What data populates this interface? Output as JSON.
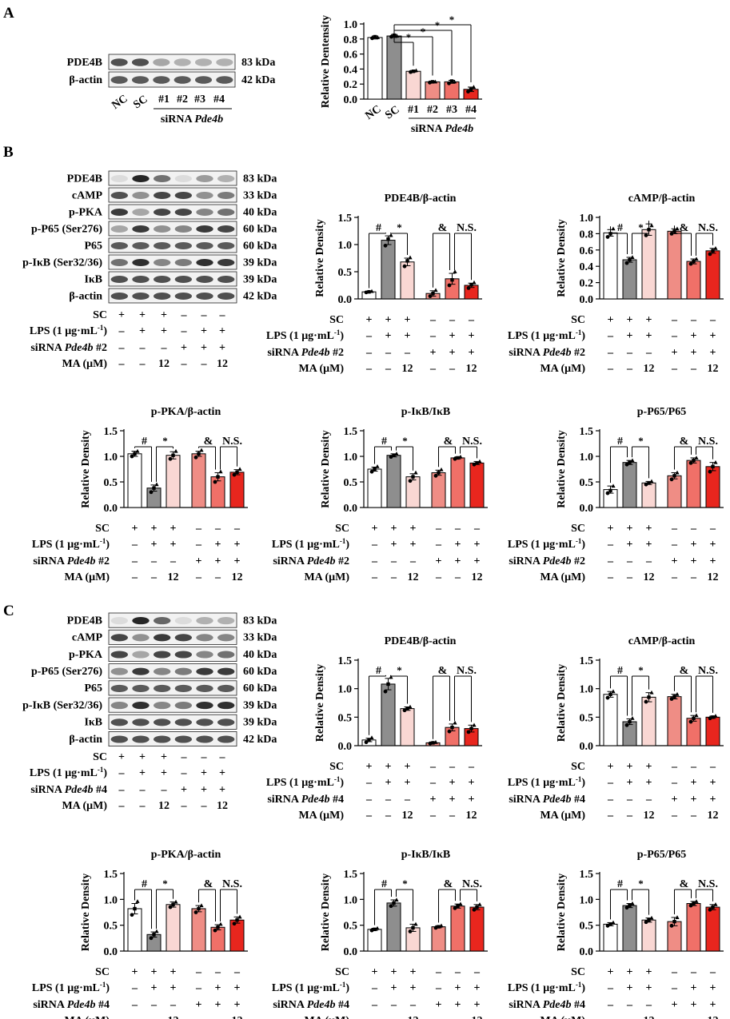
{
  "colors": {
    "nc": "#ffffff",
    "sc": "#8e8e8e",
    "si1": "#f9d7d3",
    "si2": "#ef8d85",
    "si3": "#f07068",
    "si4": "#e8261e",
    "band": "#1a1a1a",
    "membrane": "#f2f2f2"
  },
  "panel_labels": {
    "a": "A",
    "b": "B",
    "c": "C"
  },
  "blot_a": {
    "proteins": [
      "PDE4B",
      "β-actin"
    ],
    "sizes": [
      "83 kDa",
      "42 kDa"
    ],
    "lanes": [
      "NC",
      "SC",
      "#1",
      "#2",
      "#3",
      "#4"
    ],
    "group_label": "siRNA",
    "group_gene": "Pde4b",
    "intensities": [
      [
        0.75,
        0.75,
        0.35,
        0.3,
        0.3,
        0.3
      ],
      [
        0.7,
        0.7,
        0.7,
        0.7,
        0.7,
        0.7
      ]
    ]
  },
  "blot_b": {
    "proteins": [
      "PDE4B",
      "cAMP",
      "p-PKA",
      "p-P65 (Ser276)",
      "P65",
      "p-IκB (Ser32/36)",
      "IκB",
      "β-actin"
    ],
    "sizes": [
      "83 kDa",
      "33 kDa",
      "40 kDa",
      "60 kDa",
      "60 kDa",
      "39 kDa",
      "39 kDa",
      "42 kDa"
    ],
    "intensities": [
      [
        0.1,
        0.95,
        0.6,
        0.1,
        0.4,
        0.3
      ],
      [
        0.75,
        0.45,
        0.8,
        0.8,
        0.45,
        0.55
      ],
      [
        0.85,
        0.35,
        0.8,
        0.8,
        0.5,
        0.6
      ],
      [
        0.35,
        0.85,
        0.45,
        0.5,
        0.85,
        0.8
      ],
      [
        0.7,
        0.7,
        0.7,
        0.7,
        0.7,
        0.7
      ],
      [
        0.6,
        0.9,
        0.5,
        0.55,
        0.9,
        0.85
      ],
      [
        0.75,
        0.75,
        0.75,
        0.75,
        0.75,
        0.75
      ],
      [
        0.75,
        0.75,
        0.75,
        0.75,
        0.75,
        0.75
      ]
    ]
  },
  "blot_c": {
    "proteins": [
      "PDE4B",
      "cAMP",
      "p-PKA",
      "p-P65 (Ser276)",
      "P65",
      "p-IκB (Ser32/36)",
      "IκB",
      "β-actin"
    ],
    "sizes": [
      "83 kDa",
      "33 kDa",
      "40 kDa",
      "60 kDa",
      "60 kDa",
      "39 kDa",
      "39 kDa",
      "42 kDa"
    ],
    "intensities": [
      [
        0.1,
        0.95,
        0.65,
        0.1,
        0.3,
        0.3
      ],
      [
        0.8,
        0.45,
        0.85,
        0.8,
        0.5,
        0.5
      ],
      [
        0.8,
        0.35,
        0.8,
        0.8,
        0.5,
        0.6
      ],
      [
        0.45,
        0.85,
        0.5,
        0.55,
        0.85,
        0.85
      ],
      [
        0.7,
        0.7,
        0.7,
        0.7,
        0.7,
        0.7
      ],
      [
        0.5,
        0.9,
        0.5,
        0.55,
        0.9,
        0.9
      ],
      [
        0.75,
        0.75,
        0.75,
        0.75,
        0.75,
        0.75
      ],
      [
        0.75,
        0.75,
        0.75,
        0.75,
        0.75,
        0.75
      ]
    ]
  },
  "treatment_labels": {
    "sc": "SC",
    "lps_pre": "LPS (1 μg·mL",
    "lps_sup": "-1",
    "lps_post": ")",
    "sirna": "siRNA",
    "gene": "Pde4b",
    "sirna2": "#2",
    "sirna4": "#4",
    "ma": "MA (μM)"
  },
  "treatment_marks": {
    "sc": [
      "+",
      "+",
      "+",
      "–",
      "–",
      "–"
    ],
    "lps": [
      "–",
      "+",
      "+",
      "–",
      "+",
      "+"
    ],
    "sirna": [
      "–",
      "–",
      "–",
      "+",
      "+",
      "+"
    ],
    "ma": [
      "–",
      "–",
      "12",
      "–",
      "–",
      "12"
    ]
  },
  "chart_data": [
    {
      "id": "a",
      "type": "bar",
      "title": "",
      "ylabel": "Relative Dentensity",
      "ylim": [
        0,
        1.0
      ],
      "yticks": [
        "0.0",
        "0.2",
        "0.4",
        "0.6",
        "0.8",
        "1.0"
      ],
      "categories": [
        "NC",
        "SC",
        "#1",
        "#2",
        "#3",
        "#4"
      ],
      "values": [
        0.82,
        0.84,
        0.37,
        0.23,
        0.23,
        0.13
      ],
      "errors": [
        0.02,
        0.02,
        0.01,
        0.01,
        0.02,
        0.03
      ],
      "points": [
        [
          0.81,
          0.83,
          0.82
        ],
        [
          0.83,
          0.85,
          0.84
        ],
        [
          0.36,
          0.37,
          0.38
        ],
        [
          0.22,
          0.23,
          0.23
        ],
        [
          0.21,
          0.24,
          0.23
        ],
        [
          0.1,
          0.13,
          0.16
        ]
      ],
      "annotations": [
        "*",
        "*",
        "*",
        "*"
      ]
    },
    {
      "id": "b1",
      "type": "bar",
      "title": "PDE4B/β-actin",
      "ylabel": "Relative Density",
      "ylim": [
        0,
        1.5
      ],
      "yticks": [
        "0.0",
        "0.5",
        "1.0",
        "1.5"
      ],
      "values": [
        0.13,
        1.08,
        0.68,
        0.1,
        0.37,
        0.25
      ],
      "errors": [
        0.01,
        0.08,
        0.07,
        0.05,
        0.1,
        0.04
      ],
      "points": [
        [
          0.12,
          0.13,
          0.14
        ],
        [
          0.98,
          1.1,
          1.17
        ],
        [
          0.6,
          0.7,
          0.76
        ],
        [
          0.05,
          0.1,
          0.16
        ],
        [
          0.25,
          0.35,
          0.5
        ],
        [
          0.2,
          0.26,
          0.3
        ]
      ],
      "annotations": [
        "#",
        "*",
        "&",
        "N.S."
      ]
    },
    {
      "id": "b2",
      "type": "bar",
      "title": "cAMP/β-actin",
      "ylabel": "Relative Density",
      "ylim": [
        0,
        1.0
      ],
      "yticks": [
        "0.0",
        "0.2",
        "0.4",
        "0.6",
        "0.8",
        "1.0"
      ],
      "values": [
        0.81,
        0.48,
        0.85,
        0.83,
        0.46,
        0.59
      ],
      "errors": [
        0.04,
        0.03,
        0.07,
        0.03,
        0.03,
        0.03
      ],
      "points": [
        [
          0.76,
          0.8,
          0.86
        ],
        [
          0.44,
          0.48,
          0.51
        ],
        [
          0.78,
          0.85,
          0.9
        ],
        [
          0.8,
          0.83,
          0.86
        ],
        [
          0.43,
          0.46,
          0.49
        ],
        [
          0.55,
          0.59,
          0.62
        ]
      ],
      "annotations": [
        "#",
        "*",
        "&",
        "N.S."
      ]
    },
    {
      "id": "b3",
      "type": "bar",
      "title": "p-PKA/β-actin",
      "ylabel": "Relative Density",
      "ylim": [
        0,
        1.5
      ],
      "yticks": [
        "0.0",
        "0.5",
        "1.0",
        "1.5"
      ],
      "values": [
        1.05,
        0.38,
        1.02,
        1.05,
        0.6,
        0.69
      ],
      "errors": [
        0.05,
        0.06,
        0.07,
        0.05,
        0.08,
        0.05
      ],
      "points": [
        [
          1.0,
          1.05,
          1.1
        ],
        [
          0.3,
          0.38,
          0.45
        ],
        [
          0.95,
          1.02,
          1.1
        ],
        [
          0.98,
          1.05,
          1.12
        ],
        [
          0.5,
          0.6,
          0.7
        ],
        [
          0.64,
          0.69,
          0.75
        ]
      ],
      "annotations": [
        "#",
        "*",
        "&",
        "N.S."
      ]
    },
    {
      "id": "b4",
      "type": "bar",
      "title": "p-IκB/IκB",
      "ylabel": "Relative Density",
      "ylim": [
        0,
        1.5
      ],
      "yticks": [
        "0.0",
        "0.5",
        "1.0",
        "1.5"
      ],
      "values": [
        0.75,
        1.02,
        0.6,
        0.68,
        0.97,
        0.87
      ],
      "errors": [
        0.04,
        0.03,
        0.06,
        0.05,
        0.02,
        0.03
      ],
      "points": [
        [
          0.7,
          0.75,
          0.8
        ],
        [
          0.99,
          1.02,
          1.05
        ],
        [
          0.52,
          0.6,
          0.68
        ],
        [
          0.62,
          0.68,
          0.74
        ],
        [
          0.95,
          0.97,
          0.99
        ],
        [
          0.84,
          0.87,
          0.9
        ]
      ],
      "annotations": [
        "#",
        "*",
        "&",
        "N.S."
      ]
    },
    {
      "id": "b5",
      "type": "bar",
      "title": "p-P65/P65",
      "ylabel": "Relative Density",
      "ylim": [
        0,
        1.5
      ],
      "yticks": [
        "0.0",
        "0.5",
        "1.0",
        "1.5"
      ],
      "values": [
        0.35,
        0.88,
        0.48,
        0.62,
        0.92,
        0.8
      ],
      "errors": [
        0.07,
        0.04,
        0.03,
        0.06,
        0.05,
        0.08
      ],
      "points": [
        [
          0.28,
          0.33,
          0.42
        ],
        [
          0.84,
          0.88,
          0.92
        ],
        [
          0.45,
          0.48,
          0.51
        ],
        [
          0.55,
          0.62,
          0.68
        ],
        [
          0.87,
          0.92,
          0.97
        ],
        [
          0.7,
          0.8,
          0.88
        ]
      ],
      "annotations": [
        "#",
        "*",
        "&",
        "N.S."
      ]
    },
    {
      "id": "c1",
      "type": "bar",
      "title": "PDE4B/β-actin",
      "ylabel": "Relative Density",
      "ylim": [
        0,
        1.5
      ],
      "yticks": [
        "0.0",
        "0.5",
        "1.0",
        "1.5"
      ],
      "values": [
        0.1,
        1.08,
        0.65,
        0.05,
        0.32,
        0.3
      ],
      "errors": [
        0.03,
        0.1,
        0.03,
        0.01,
        0.06,
        0.06
      ],
      "points": [
        [
          0.06,
          0.1,
          0.14
        ],
        [
          0.95,
          1.08,
          1.2
        ],
        [
          0.62,
          0.65,
          0.68
        ],
        [
          0.04,
          0.05,
          0.06
        ],
        [
          0.25,
          0.32,
          0.4
        ],
        [
          0.24,
          0.3,
          0.36
        ]
      ],
      "annotations": [
        "#",
        "*",
        "&",
        "N.S."
      ]
    },
    {
      "id": "c2",
      "type": "bar",
      "title": "cAMP/β-actin",
      "ylabel": "Relative Density",
      "ylim": [
        0,
        1.5
      ],
      "yticks": [
        "0.0",
        "0.5",
        "1.0",
        "1.5"
      ],
      "values": [
        0.9,
        0.42,
        0.85,
        0.86,
        0.48,
        0.5
      ],
      "errors": [
        0.05,
        0.05,
        0.08,
        0.04,
        0.05,
        0.02
      ],
      "points": [
        [
          0.84,
          0.9,
          0.95
        ],
        [
          0.36,
          0.42,
          0.48
        ],
        [
          0.77,
          0.85,
          0.93
        ],
        [
          0.82,
          0.86,
          0.9
        ],
        [
          0.42,
          0.48,
          0.53
        ],
        [
          0.48,
          0.5,
          0.52
        ]
      ],
      "annotations": [
        "#",
        "*",
        "&",
        "N.S."
      ]
    },
    {
      "id": "c3",
      "type": "bar",
      "title": "p-PKA/β-actin",
      "ylabel": "Relative Density",
      "ylim": [
        0,
        1.5
      ],
      "yticks": [
        "0.0",
        "0.5",
        "1.0",
        "1.5"
      ],
      "values": [
        0.82,
        0.32,
        0.9,
        0.82,
        0.46,
        0.6
      ],
      "errors": [
        0.1,
        0.05,
        0.05,
        0.06,
        0.05,
        0.06
      ],
      "points": [
        [
          0.7,
          0.82,
          0.96
        ],
        [
          0.25,
          0.32,
          0.38
        ],
        [
          0.85,
          0.9,
          0.95
        ],
        [
          0.75,
          0.82,
          0.88
        ],
        [
          0.4,
          0.46,
          0.52
        ],
        [
          0.53,
          0.6,
          0.66
        ]
      ],
      "annotations": [
        "#",
        "*",
        "&",
        "N.S."
      ]
    },
    {
      "id": "c4",
      "type": "bar",
      "title": "p-IκB/IκB",
      "ylabel": "Relative Density",
      "ylim": [
        0,
        1.5
      ],
      "yticks": [
        "0.0",
        "0.5",
        "1.0",
        "1.5"
      ],
      "values": [
        0.42,
        0.93,
        0.45,
        0.47,
        0.87,
        0.85
      ],
      "errors": [
        0.02,
        0.06,
        0.07,
        0.02,
        0.04,
        0.05
      ],
      "points": [
        [
          0.4,
          0.42,
          0.44
        ],
        [
          0.87,
          0.93,
          0.99
        ],
        [
          0.38,
          0.45,
          0.52
        ],
        [
          0.45,
          0.47,
          0.49
        ],
        [
          0.83,
          0.87,
          0.91
        ],
        [
          0.8,
          0.85,
          0.9
        ]
      ],
      "annotations": [
        "#",
        "*",
        "&",
        "N.S."
      ]
    },
    {
      "id": "c5",
      "type": "bar",
      "title": "p-P65/P65",
      "ylabel": "Relative Density",
      "ylim": [
        0,
        1.5
      ],
      "yticks": [
        "0.0",
        "0.5",
        "1.0",
        "1.5"
      ],
      "values": [
        0.52,
        0.88,
        0.6,
        0.57,
        0.92,
        0.85
      ],
      "errors": [
        0.03,
        0.04,
        0.04,
        0.08,
        0.04,
        0.05
      ],
      "points": [
        [
          0.49,
          0.52,
          0.55
        ],
        [
          0.84,
          0.88,
          0.92
        ],
        [
          0.56,
          0.6,
          0.64
        ],
        [
          0.49,
          0.57,
          0.65
        ],
        [
          0.88,
          0.92,
          0.96
        ],
        [
          0.8,
          0.85,
          0.9
        ]
      ],
      "annotations": [
        "#",
        "*",
        "&",
        "N.S."
      ]
    }
  ]
}
